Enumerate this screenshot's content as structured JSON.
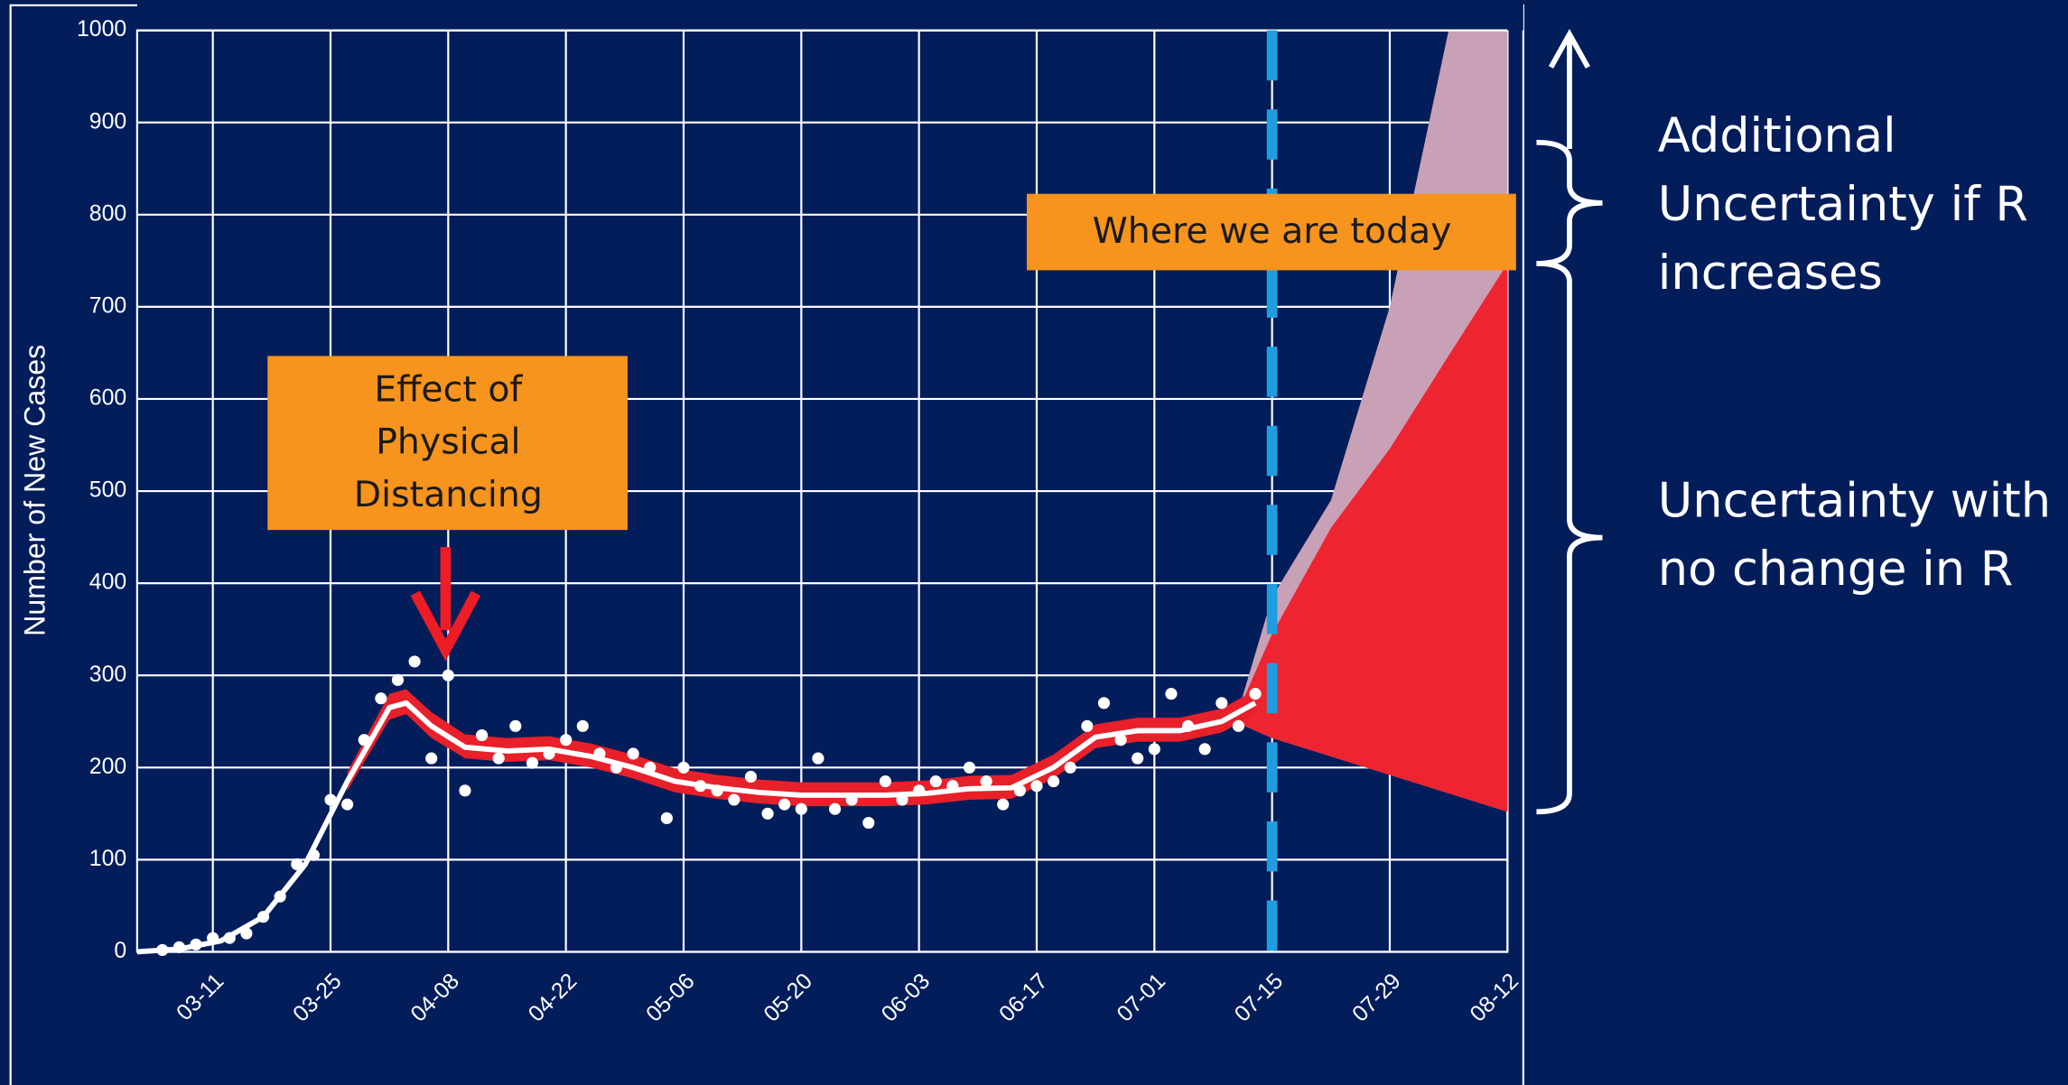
{
  "chart_data": {
    "type": "line",
    "y_label": "Number of New Cases",
    "xlim": [
      "03-02",
      "08-12"
    ],
    "ylim": [
      0,
      1000
    ],
    "xticks": [
      "03-11",
      "03-25",
      "04-08",
      "04-22",
      "05-06",
      "05-20",
      "06-03",
      "06-17",
      "07-01",
      "07-15",
      "07-29",
      "08-12"
    ],
    "yticks": [
      0,
      100,
      200,
      300,
      400,
      500,
      600,
      700,
      800,
      900,
      1000
    ],
    "grid": true,
    "points": {
      "color": "#ffffff",
      "x": [
        "03-05",
        "03-07",
        "03-09",
        "03-11",
        "03-13",
        "03-15",
        "03-17",
        "03-19",
        "03-21",
        "03-23",
        "03-25",
        "03-27",
        "03-29",
        "03-31",
        "04-02",
        "04-04",
        "04-06",
        "04-08",
        "04-10",
        "04-12",
        "04-14",
        "04-16",
        "04-18",
        "04-20",
        "04-22",
        "04-24",
        "04-26",
        "04-28",
        "04-30",
        "05-02",
        "05-04",
        "05-06",
        "05-08",
        "05-10",
        "05-12",
        "05-14",
        "05-16",
        "05-18",
        "05-20",
        "05-22",
        "05-24",
        "05-26",
        "05-28",
        "05-30",
        "06-01",
        "06-03",
        "06-05",
        "06-07",
        "06-09",
        "06-11",
        "06-13",
        "06-15",
        "06-17",
        "06-19",
        "06-21",
        "06-23",
        "06-25",
        "06-27",
        "06-29",
        "07-01",
        "07-03",
        "07-05",
        "07-07",
        "07-09",
        "07-11",
        "07-13"
      ],
      "values": [
        2,
        5,
        8,
        15,
        15,
        20,
        38,
        60,
        95,
        105,
        165,
        160,
        230,
        275,
        295,
        315,
        210,
        300,
        175,
        235,
        210,
        245,
        205,
        215,
        230,
        245,
        215,
        200,
        215,
        200,
        145,
        200,
        180,
        175,
        165,
        190,
        150,
        160,
        155,
        210,
        155,
        165,
        140,
        185,
        165,
        175,
        185,
        180,
        200,
        185,
        160,
        175,
        180,
        185,
        200,
        245,
        270,
        230,
        210,
        220,
        280,
        245,
        220,
        270,
        245,
        280
      ]
    },
    "fit": {
      "color": "#ffffff",
      "band_color": "#e8202a",
      "x": [
        "03-02",
        "03-07",
        "03-12",
        "03-17",
        "03-22",
        "03-27",
        "04-01",
        "04-03",
        "04-06",
        "04-10",
        "04-15",
        "04-20",
        "04-25",
        "04-30",
        "05-05",
        "05-10",
        "05-15",
        "05-20",
        "05-25",
        "05-30",
        "06-04",
        "06-09",
        "06-14",
        "06-19",
        "06-24",
        "06-29",
        "07-04",
        "07-09",
        "07-13"
      ],
      "values": [
        0,
        3,
        12,
        38,
        95,
        185,
        265,
        270,
        245,
        222,
        218,
        220,
        212,
        200,
        185,
        178,
        173,
        170,
        170,
        170,
        172,
        177,
        178,
        200,
        233,
        240,
        240,
        250,
        270
      ],
      "lower": [
        null,
        null,
        null,
        null,
        null,
        175,
        252,
        258,
        232,
        210,
        206,
        208,
        200,
        188,
        173,
        166,
        161,
        158,
        158,
        158,
        160,
        165,
        166,
        188,
        221,
        228,
        228,
        238,
        258
      ],
      "upper": [
        null,
        null,
        null,
        null,
        null,
        195,
        280,
        285,
        260,
        236,
        232,
        234,
        226,
        214,
        199,
        192,
        187,
        184,
        184,
        184,
        186,
        191,
        192,
        214,
        247,
        254,
        254,
        264,
        284
      ]
    },
    "projection": {
      "color": "#ee2430",
      "color_if_r_increases": "#c9a1b6",
      "x": [
        "07-11",
        "07-15",
        "07-22",
        "07-29",
        "08-05",
        "08-12"
      ],
      "lower": [
        248,
        232,
        212,
        192,
        172,
        152
      ],
      "upper": [
        262,
        345,
        460,
        546,
        647,
        747
      ],
      "upper_if_r_increases": [
        262,
        385,
        490,
        700,
        1000,
        1000
      ]
    },
    "today": {
      "x": "07-15",
      "label": "Where we are today",
      "color": "#1e9ee0",
      "box_color": "#f7941d"
    },
    "annotation": {
      "x": "04-08",
      "lines": [
        "Effect of",
        "Physical",
        "Distancing"
      ],
      "box_color": "#f7941d",
      "arrow_color": "#ee1c25"
    },
    "side_labels": [
      {
        "lines": [
          "Additional",
          "Uncertainty if R",
          "increases"
        ]
      },
      {
        "lines": [
          "Uncertainty with",
          "no change in R"
        ]
      }
    ]
  }
}
